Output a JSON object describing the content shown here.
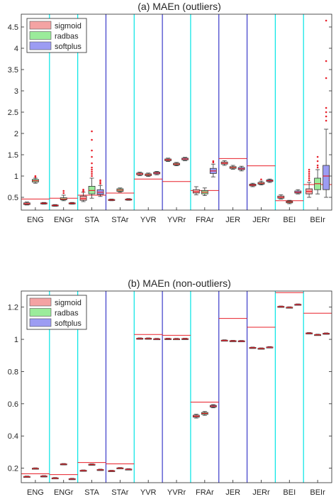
{
  "chart_data": [
    {
      "type": "box",
      "title": "(a) MAEn (outliers)",
      "categories": [
        "ENG",
        "ENGr",
        "STA",
        "STAr",
        "YVR",
        "YVRr",
        "FRAr",
        "JER",
        "JERr",
        "BEI",
        "BEIr"
      ],
      "ylim": [
        0.2,
        4.8
      ],
      "yticks": [
        0.5,
        1,
        1.5,
        2,
        2.5,
        3,
        3.5,
        4,
        4.5
      ],
      "ytick_labels": [
        "0.5",
        "1",
        "1.5",
        "2",
        "2.5",
        "3",
        "3.5",
        "4",
        "4.5"
      ],
      "legend": {
        "position": "top-left",
        "entries": [
          "sigmoid",
          "radbas",
          "softplus"
        ]
      },
      "series": [
        {
          "name": "sigmoid",
          "color": "#f4a3a3",
          "boxes": [
            {
              "med": 0.35,
              "q1": 0.33,
              "q3": 0.37,
              "lo": 0.32,
              "hi": 0.39
            },
            {
              "med": 0.31,
              "q1": 0.3,
              "q3": 0.32,
              "lo": 0.29,
              "hi": 0.33
            },
            {
              "med": 0.47,
              "q1": 0.43,
              "q3": 0.53,
              "lo": 0.4,
              "hi": 0.62,
              "outliers": [
                0.63,
                0.65,
                0.68
              ]
            },
            {
              "med": 0.44,
              "q1": 0.43,
              "q3": 0.45,
              "lo": 0.42,
              "hi": 0.46
            },
            {
              "med": 1.05,
              "q1": 1.03,
              "q3": 1.07,
              "lo": 1.01,
              "hi": 1.09
            },
            {
              "med": 1.38,
              "q1": 1.36,
              "q3": 1.4,
              "lo": 1.34,
              "hi": 1.42
            },
            {
              "med": 0.63,
              "q1": 0.6,
              "q3": 0.68,
              "lo": 0.56,
              "hi": 0.75
            },
            {
              "med": 1.3,
              "q1": 1.28,
              "q3": 1.33,
              "lo": 1.25,
              "hi": 1.36
            },
            {
              "med": 0.79,
              "q1": 0.77,
              "q3": 0.81,
              "lo": 0.75,
              "hi": 0.83
            },
            {
              "med": 0.5,
              "q1": 0.48,
              "q3": 0.53,
              "lo": 0.46,
              "hi": 0.56
            },
            {
              "med": 0.64,
              "q1": 0.58,
              "q3": 0.7,
              "lo": 0.5,
              "hi": 0.85,
              "outliers": [
                0.9,
                0.95,
                1.0,
                1.05,
                1.1,
                1.15
              ]
            }
          ]
        },
        {
          "name": "radbas",
          "color": "#9bec9b",
          "boxes": [
            {
              "med": 0.89,
              "q1": 0.86,
              "q3": 0.92,
              "lo": 0.83,
              "hi": 0.95,
              "outliers": [
                0.98,
                1.0
              ]
            },
            {
              "med": 0.46,
              "q1": 0.44,
              "q3": 0.49,
              "lo": 0.42,
              "hi": 0.55,
              "outliers": [
                0.6,
                0.65
              ]
            },
            {
              "med": 0.66,
              "q1": 0.58,
              "q3": 0.76,
              "lo": 0.48,
              "hi": 0.95,
              "outliers": [
                1.0,
                1.05,
                1.1,
                1.15,
                1.2,
                1.3,
                1.45,
                1.6,
                1.85,
                2.05
              ]
            },
            {
              "med": 0.67,
              "q1": 0.64,
              "q3": 0.7,
              "lo": 0.62,
              "hi": 0.72
            },
            {
              "med": 1.03,
              "q1": 1.01,
              "q3": 1.05,
              "lo": 0.99,
              "hi": 1.07
            },
            {
              "med": 1.28,
              "q1": 1.26,
              "q3": 1.3,
              "lo": 1.24,
              "hi": 1.32
            },
            {
              "med": 0.62,
              "q1": 0.58,
              "q3": 0.66,
              "lo": 0.54,
              "hi": 0.72
            },
            {
              "med": 1.2,
              "q1": 1.18,
              "q3": 1.22,
              "lo": 1.16,
              "hi": 1.25
            },
            {
              "med": 0.83,
              "q1": 0.81,
              "q3": 0.85,
              "lo": 0.79,
              "hi": 0.88,
              "outliers": [
                0.92
              ]
            },
            {
              "med": 0.39,
              "q1": 0.37,
              "q3": 0.41,
              "lo": 0.35,
              "hi": 0.43
            },
            {
              "med": 0.82,
              "q1": 0.68,
              "q3": 0.95,
              "lo": 0.58,
              "hi": 1.15,
              "outliers": [
                1.2,
                1.25,
                1.35,
                1.45
              ]
            }
          ]
        },
        {
          "name": "softplus",
          "color": "#9c9cf3",
          "boxes": [
            {
              "med": 0.36,
              "q1": 0.35,
              "q3": 0.37,
              "lo": 0.34,
              "hi": 0.38
            },
            {
              "med": 0.36,
              "q1": 0.35,
              "q3": 0.37,
              "lo": 0.34,
              "hi": 0.38
            },
            {
              "med": 0.62,
              "q1": 0.57,
              "q3": 0.68,
              "lo": 0.52,
              "hi": 0.78,
              "outliers": [
                0.82,
                0.86,
                0.9
              ]
            },
            {
              "med": 0.45,
              "q1": 0.44,
              "q3": 0.46,
              "lo": 0.43,
              "hi": 0.47
            },
            {
              "med": 1.07,
              "q1": 1.05,
              "q3": 1.09,
              "lo": 1.03,
              "hi": 1.11
            },
            {
              "med": 1.4,
              "q1": 1.38,
              "q3": 1.42,
              "lo": 1.36,
              "hi": 1.44
            },
            {
              "med": 1.12,
              "q1": 1.06,
              "q3": 1.18,
              "lo": 0.98,
              "hi": 1.28,
              "outliers": [
                1.32,
                1.35
              ]
            },
            {
              "med": 1.17,
              "q1": 1.15,
              "q3": 1.2,
              "lo": 1.12,
              "hi": 1.23
            },
            {
              "med": 0.89,
              "q1": 0.87,
              "q3": 0.91,
              "lo": 0.85,
              "hi": 0.93
            },
            {
              "med": 0.62,
              "q1": 0.6,
              "q3": 0.65,
              "lo": 0.58,
              "hi": 0.68
            },
            {
              "med": 1.0,
              "q1": 0.68,
              "q3": 1.25,
              "lo": 0.5,
              "hi": 2.1,
              "outliers": [
                2.3,
                2.4,
                2.5,
                2.6,
                3.3,
                3.7,
                4.65
              ]
            }
          ]
        }
      ],
      "reference_lines": [
        0.46,
        0.48,
        0.55,
        0.6,
        0.93,
        0.87,
        0.66,
        1.41,
        1.24,
        0.42,
        0.8
      ]
    },
    {
      "type": "box",
      "title": "(b) MAEn (non-outliers)",
      "categories": [
        "ENG",
        "ENGr",
        "STA",
        "STAr",
        "YVR",
        "YVRr",
        "FRAr",
        "JER",
        "JERr",
        "BEI",
        "BEIr"
      ],
      "ylim": [
        0.11,
        1.3
      ],
      "yticks": [
        0.2,
        0.4,
        0.6,
        0.8,
        1,
        1.2
      ],
      "ytick_labels": [
        "0.2",
        "0.4",
        "0.6",
        "0.8",
        "1",
        "1.2"
      ],
      "legend": {
        "position": "top-left",
        "entries": [
          "sigmoid",
          "radbas",
          "softplus"
        ]
      },
      "series": [
        {
          "name": "sigmoid",
          "color": "#f4a3a3",
          "boxes": [
            {
              "med": 0.147,
              "q1": 0.145,
              "q3": 0.149,
              "lo": 0.143,
              "hi": 0.151
            },
            {
              "med": 0.138,
              "q1": 0.136,
              "q3": 0.14,
              "lo": 0.134,
              "hi": 0.142
            },
            {
              "med": 0.185,
              "q1": 0.183,
              "q3": 0.187,
              "lo": 0.181,
              "hi": 0.189
            },
            {
              "med": 0.183,
              "q1": 0.181,
              "q3": 0.185,
              "lo": 0.179,
              "hi": 0.187
            },
            {
              "med": 1.005,
              "q1": 1.003,
              "q3": 1.007,
              "lo": 1.001,
              "hi": 1.009
            },
            {
              "med": 1.003,
              "q1": 1.001,
              "q3": 1.005,
              "lo": 0.999,
              "hi": 1.007
            },
            {
              "med": 0.523,
              "q1": 0.517,
              "q3": 0.529,
              "lo": 0.511,
              "hi": 0.535
            },
            {
              "med": 0.993,
              "q1": 0.991,
              "q3": 0.995,
              "lo": 0.989,
              "hi": 0.997
            },
            {
              "med": 0.948,
              "q1": 0.946,
              "q3": 0.95,
              "lo": 0.944,
              "hi": 0.952
            },
            {
              "med": 1.203,
              "q1": 1.201,
              "q3": 1.205,
              "lo": 1.199,
              "hi": 1.207
            },
            {
              "med": 1.038,
              "q1": 1.036,
              "q3": 1.04,
              "lo": 1.034,
              "hi": 1.042
            }
          ]
        },
        {
          "name": "radbas",
          "color": "#9bec9b",
          "boxes": [
            {
              "med": 0.198,
              "q1": 0.196,
              "q3": 0.2,
              "lo": 0.194,
              "hi": 0.202
            },
            {
              "med": 0.225,
              "q1": 0.223,
              "q3": 0.227,
              "lo": 0.221,
              "hi": 0.229
            },
            {
              "med": 0.223,
              "q1": 0.221,
              "q3": 0.225,
              "lo": 0.219,
              "hi": 0.227
            },
            {
              "med": 0.2,
              "q1": 0.198,
              "q3": 0.202,
              "lo": 0.196,
              "hi": 0.204
            },
            {
              "med": 1.005,
              "q1": 1.003,
              "q3": 1.007,
              "lo": 1.001,
              "hi": 1.009
            },
            {
              "med": 1.002,
              "q1": 1.0,
              "q3": 1.004,
              "lo": 0.998,
              "hi": 1.006
            },
            {
              "med": 0.54,
              "q1": 0.534,
              "q3": 0.546,
              "lo": 0.528,
              "hi": 0.552
            },
            {
              "med": 0.99,
              "q1": 0.988,
              "q3": 0.992,
              "lo": 0.986,
              "hi": 0.994
            },
            {
              "med": 0.943,
              "q1": 0.941,
              "q3": 0.945,
              "lo": 0.939,
              "hi": 0.947
            },
            {
              "med": 1.198,
              "q1": 1.196,
              "q3": 1.2,
              "lo": 1.194,
              "hi": 1.202
            },
            {
              "med": 1.028,
              "q1": 1.026,
              "q3": 1.03,
              "lo": 1.024,
              "hi": 1.032
            }
          ]
        },
        {
          "name": "softplus",
          "color": "#9c9cf3",
          "boxes": [
            {
              "med": 0.15,
              "q1": 0.148,
              "q3": 0.152,
              "lo": 0.146,
              "hi": 0.154
            },
            {
              "med": 0.133,
              "q1": 0.131,
              "q3": 0.135,
              "lo": 0.129,
              "hi": 0.137
            },
            {
              "med": 0.19,
              "q1": 0.188,
              "q3": 0.192,
              "lo": 0.186,
              "hi": 0.194
            },
            {
              "med": 0.193,
              "q1": 0.191,
              "q3": 0.195,
              "lo": 0.189,
              "hi": 0.197
            },
            {
              "med": 1.002,
              "q1": 1.0,
              "q3": 1.004,
              "lo": 0.998,
              "hi": 1.006
            },
            {
              "med": 1.003,
              "q1": 1.001,
              "q3": 1.005,
              "lo": 0.999,
              "hi": 1.007
            },
            {
              "med": 0.585,
              "q1": 0.58,
              "q3": 0.59,
              "lo": 0.575,
              "hi": 0.595
            },
            {
              "med": 0.989,
              "q1": 0.987,
              "q3": 0.991,
              "lo": 0.985,
              "hi": 0.993
            },
            {
              "med": 0.951,
              "q1": 0.949,
              "q3": 0.953,
              "lo": 0.947,
              "hi": 0.955
            },
            {
              "med": 1.216,
              "q1": 1.214,
              "q3": 1.218,
              "lo": 1.212,
              "hi": 1.22
            },
            {
              "med": 1.036,
              "q1": 1.034,
              "q3": 1.038,
              "lo": 1.032,
              "hi": 1.04
            }
          ]
        }
      ],
      "reference_lines": [
        0.165,
        0.16,
        0.235,
        0.227,
        1.03,
        1.025,
        0.61,
        1.13,
        1.075,
        1.29,
        1.162
      ]
    }
  ],
  "style": {
    "separator_colors": [
      "#00e5e5",
      "#00e5e5",
      "#3a3ac8",
      "#00e5e5",
      "#3a3ac8",
      "#00e5e5",
      "#3a3ac8",
      "#3a3ac8",
      "#00e5e5",
      "#00e5e5"
    ],
    "reference_line_color": "#e8202a",
    "median_color": "#e8202a",
    "outlier_color": "#e8202a",
    "axis_color": "#262626"
  }
}
